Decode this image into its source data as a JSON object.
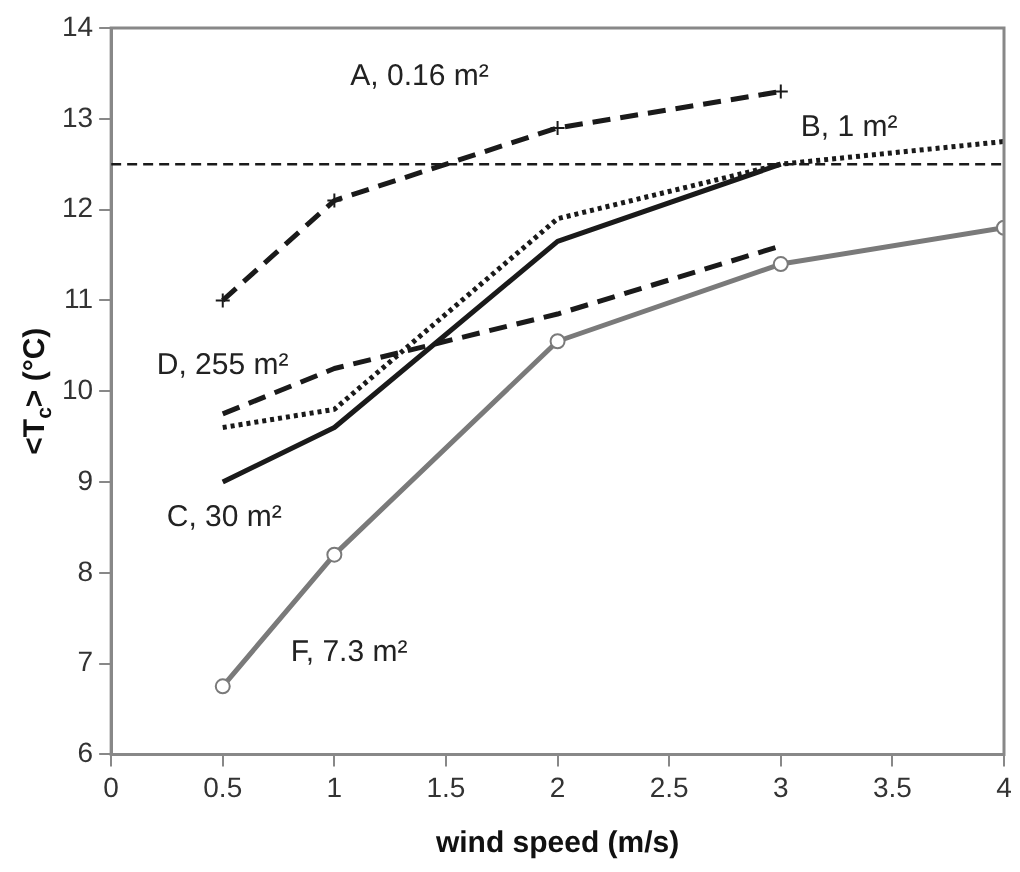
{
  "chart_data": {
    "type": "line",
    "xlabel": "wind speed (m/s)",
    "ylabel": "<T$_{c}$> (°C)",
    "xlim": [
      0,
      4
    ],
    "xticks": [
      0,
      0.5,
      1,
      1.5,
      2,
      2.5,
      3,
      3.5,
      4
    ],
    "ylim": [
      6,
      14
    ],
    "yticks": [
      6,
      7,
      8,
      9,
      10,
      11,
      12,
      13,
      14
    ],
    "grid": false,
    "legend": false,
    "series": [
      {
        "name": "A, 0.16 m²",
        "color": "#1a1a1a",
        "line_style": "dashed",
        "marker": "cross",
        "x": [
          0.5,
          1,
          2,
          3
        ],
        "values": [
          11.0,
          12.1,
          12.9,
          13.3
        ]
      },
      {
        "name": "B, 1 m²",
        "color": "#1a1a1a",
        "line_style": "dotted",
        "marker": "none",
        "x": [
          0.5,
          1,
          2,
          3,
          4
        ],
        "values": [
          9.6,
          9.8,
          11.9,
          12.5,
          12.75
        ]
      },
      {
        "name": "C, 30 m²",
        "color": "#1a1a1a",
        "line_style": "solid",
        "marker": "none",
        "x": [
          0.5,
          1,
          2,
          3
        ],
        "values": [
          9.0,
          9.6,
          11.65,
          12.5
        ]
      },
      {
        "name": "D, 255 m²",
        "color": "#1a1a1a",
        "line_style": "dashed",
        "marker": "none",
        "x": [
          0.5,
          1,
          2,
          3
        ],
        "values": [
          9.75,
          10.25,
          10.85,
          11.6
        ]
      },
      {
        "name": "F, 7.3 m²",
        "color": "#7a7a7a",
        "line_style": "solid",
        "marker": "circle",
        "x": [
          0.5,
          1,
          2,
          3,
          4
        ],
        "values": [
          6.75,
          8.2,
          10.55,
          11.4,
          11.8
        ]
      }
    ],
    "ref_lines": [
      {
        "axis": "y",
        "value": 12.5,
        "line_style": "dashed",
        "color": "#1a1a1a"
      }
    ]
  }
}
